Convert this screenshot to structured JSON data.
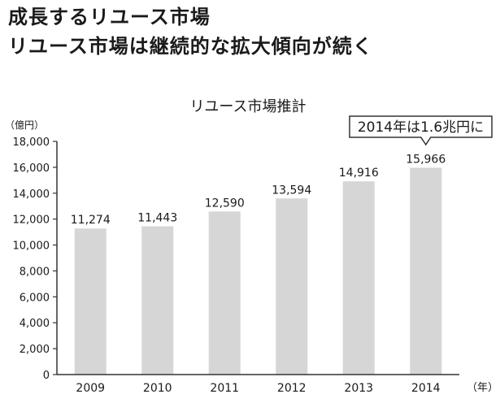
{
  "headline": {
    "line1": "成長するリユース市場",
    "line2": "リユース市場は継続的な拡大傾向が続く"
  },
  "colors": {
    "bar": "#d6d6d6",
    "axis": "#333333",
    "text": "#1a1a1a",
    "background": "#ffffff"
  },
  "chart_data": {
    "type": "bar",
    "title": "リユース市場推計",
    "ylabel": "（億円）",
    "xlabel": "（年）",
    "categories": [
      "2009",
      "2010",
      "2011",
      "2012",
      "2013",
      "2014"
    ],
    "values": [
      11274,
      11443,
      12590,
      13594,
      14916,
      15966
    ],
    "value_labels": [
      "11,274",
      "11,443",
      "12,590",
      "13,594",
      "14,916",
      "15,966"
    ],
    "ylim": [
      0,
      18000
    ],
    "y_ticks": [
      0,
      2000,
      4000,
      6000,
      8000,
      10000,
      12000,
      14000,
      16000,
      18000
    ],
    "y_tick_labels": [
      "0",
      "2,000",
      "4,000",
      "6,000",
      "8,000",
      "10,000",
      "12,000",
      "14,000",
      "16,000",
      "18,000"
    ],
    "grid": false,
    "legend": "none",
    "annotation": {
      "text": "2014年は1.6兆円に",
      "target_category": "2014"
    }
  }
}
